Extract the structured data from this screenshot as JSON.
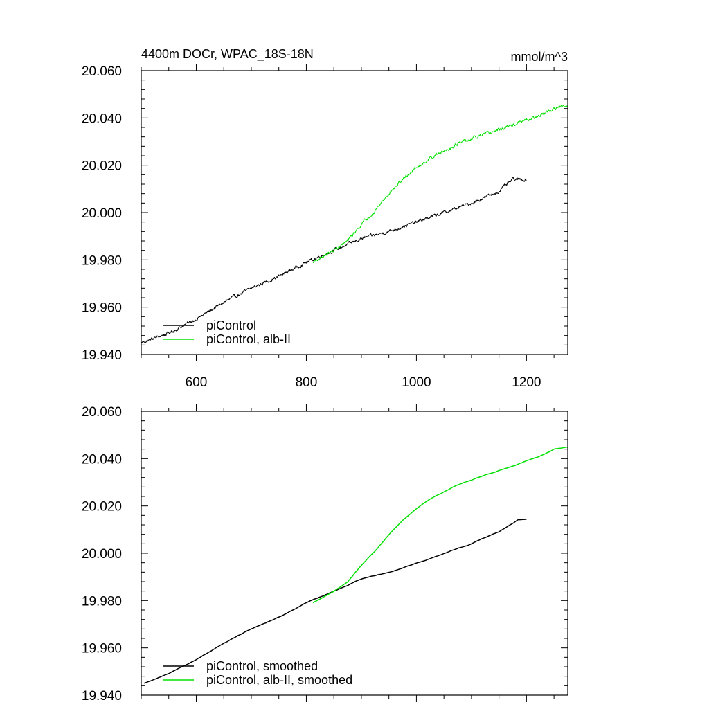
{
  "chart_data": [
    {
      "type": "line",
      "title": "4400m DOCr, WPAC_18S-18N",
      "units": "mmol/m^3",
      "xlim": [
        500,
        1275
      ],
      "ylim": [
        19.94,
        20.06
      ],
      "xticks": [
        600,
        800,
        1000,
        1200
      ],
      "xtick_labels": [
        "600",
        "800",
        "1000",
        "1200"
      ],
      "yticks": [
        19.94,
        19.96,
        19.98,
        20.0,
        20.02,
        20.04,
        20.06
      ],
      "ytick_labels": [
        "19.940",
        "19.960",
        "19.980",
        "20.000",
        "20.020",
        "20.040",
        "20.060"
      ],
      "grid": false,
      "legend_position": "bottom-left",
      "series": [
        {
          "name": "piControl",
          "color": "#000000",
          "noisy": true,
          "x": [
            500,
            550,
            600,
            650,
            700,
            750,
            800,
            850,
            900,
            950,
            1000,
            1050,
            1100,
            1150,
            1175,
            1200
          ],
          "y": [
            19.945,
            19.949,
            19.955,
            19.962,
            19.968,
            19.973,
            19.979,
            19.984,
            19.989,
            19.992,
            19.996,
            20.0,
            20.004,
            20.009,
            20.014,
            20.014
          ]
        },
        {
          "name": "piControl, alb-II",
          "color": "#00e000",
          "noisy": true,
          "x": [
            812,
            850,
            875,
            900,
            925,
            950,
            975,
            1000,
            1025,
            1050,
            1075,
            1100,
            1125,
            1150,
            1175,
            1200,
            1225,
            1250,
            1275
          ],
          "y": [
            19.979,
            19.984,
            19.988,
            19.995,
            20.001,
            20.008,
            20.014,
            20.019,
            20.023,
            20.026,
            20.029,
            20.031,
            20.033,
            20.035,
            20.037,
            20.039,
            20.041,
            20.044,
            20.045
          ]
        }
      ]
    },
    {
      "type": "line",
      "xlim": [
        500,
        1275
      ],
      "ylim": [
        19.94,
        20.06
      ],
      "xticks": [
        600,
        800,
        1000,
        1200
      ],
      "yticks": [
        19.94,
        19.96,
        19.98,
        20.0,
        20.02,
        20.04,
        20.06
      ],
      "ytick_labels": [
        "19.940",
        "19.960",
        "19.980",
        "20.000",
        "20.020",
        "20.040",
        "20.060"
      ],
      "grid": false,
      "legend_position": "bottom-left",
      "series": [
        {
          "name": "piControl, smoothed",
          "color": "#000000",
          "noisy": false,
          "x": [
            505,
            550,
            600,
            650,
            700,
            750,
            800,
            850,
            900,
            950,
            1000,
            1050,
            1100,
            1150,
            1185,
            1200
          ],
          "y": [
            19.945,
            19.949,
            19.955,
            19.962,
            19.968,
            19.973,
            19.979,
            19.984,
            19.989,
            19.992,
            19.996,
            20.0,
            20.004,
            20.009,
            20.014,
            20.014
          ]
        },
        {
          "name": "piControl, alb-II, smoothed",
          "color": "#00e000",
          "noisy": false,
          "x": [
            812,
            850,
            875,
            900,
            925,
            950,
            975,
            1000,
            1025,
            1050,
            1075,
            1100,
            1125,
            1150,
            1175,
            1200,
            1225,
            1250,
            1275
          ],
          "y": [
            19.979,
            19.984,
            19.988,
            19.995,
            20.001,
            20.008,
            20.014,
            20.019,
            20.023,
            20.026,
            20.029,
            20.031,
            20.033,
            20.035,
            20.037,
            20.039,
            20.041,
            20.044,
            20.045
          ]
        }
      ]
    }
  ]
}
